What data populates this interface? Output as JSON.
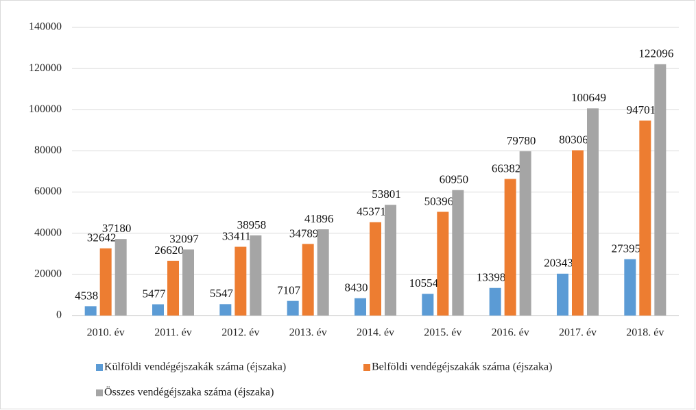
{
  "chart_data": {
    "type": "bar",
    "categories": [
      "2010. év",
      "2011. év",
      "2012. év",
      "2013. év",
      "2014. év",
      "2015. év",
      "2016. év",
      "2017. év",
      "2018. év"
    ],
    "series": [
      {
        "name": "Külföldi vendégéjszakák száma (éjszaka)",
        "color": "#5b9bd5",
        "values": [
          4538,
          5477,
          5547,
          7107,
          8430,
          10554,
          13398,
          20343,
          27395
        ]
      },
      {
        "name": "Belföldi vendégéjszakák száma (éjszaka)",
        "color": "#ed7d31",
        "values": [
          32642,
          26620,
          33411,
          34789,
          45371,
          50396,
          66382,
          80306,
          94701
        ]
      },
      {
        "name": "Összes vendégéjszaka száma (éjszaka)",
        "color": "#a5a5a5",
        "values": [
          37180,
          32097,
          38958,
          41896,
          53801,
          60950,
          79780,
          100649,
          122096
        ]
      }
    ],
    "ylim": [
      0,
      140000
    ],
    "yticks": [
      0,
      20000,
      40000,
      60000,
      80000,
      100000,
      120000,
      140000
    ],
    "grid": true,
    "legend": "bottom"
  }
}
